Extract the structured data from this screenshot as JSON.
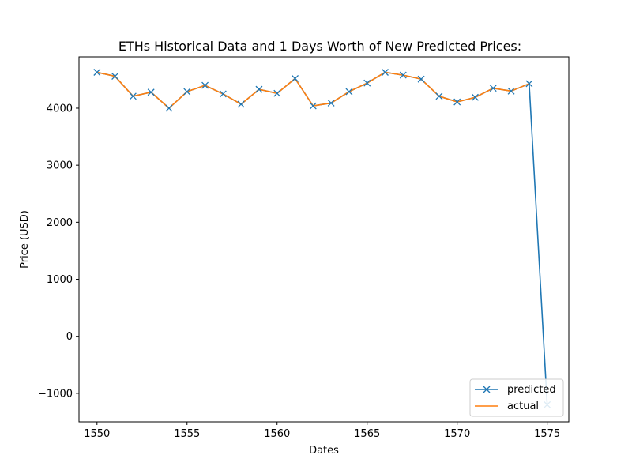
{
  "chart_data": {
    "type": "line",
    "title": "ETHs Historical Data and 1 Days Worth of New Predicted Prices:",
    "xlabel": "Dates",
    "ylabel": "Price (USD)",
    "xlim": [
      1549,
      1576.2
    ],
    "ylim": [
      -1500,
      4900
    ],
    "xticks": [
      "1550",
      "1555",
      "1560",
      "1565",
      "1570",
      "1575"
    ],
    "yticks": [
      "−1000",
      "0",
      "1000",
      "2000",
      "3000",
      "4000"
    ],
    "grid": false,
    "legend_position": "lower-right",
    "series": [
      {
        "name": "predicted",
        "color": "#1f77b4",
        "marker": "x",
        "x": [
          1550,
          1551,
          1552,
          1553,
          1554,
          1555,
          1556,
          1557,
          1558,
          1559,
          1560,
          1561,
          1562,
          1563,
          1564,
          1565,
          1566,
          1567,
          1568,
          1569,
          1570,
          1571,
          1572,
          1573,
          1574,
          1575
        ],
        "y": [
          4630,
          4560,
          4210,
          4280,
          4000,
          4290,
          4400,
          4250,
          4070,
          4330,
          4260,
          4520,
          4040,
          4090,
          4290,
          4440,
          4630,
          4580,
          4510,
          4210,
          4110,
          4190,
          4350,
          4300,
          4430,
          -1200
        ]
      },
      {
        "name": "actual",
        "color": "#ff7f0e",
        "marker": "none",
        "x": [
          1550,
          1551,
          1552,
          1553,
          1554,
          1555,
          1556,
          1557,
          1558,
          1559,
          1560,
          1561,
          1562,
          1563,
          1564,
          1565,
          1566,
          1567,
          1568,
          1569,
          1570,
          1571,
          1572,
          1573,
          1574
        ],
        "y": [
          4630,
          4560,
          4210,
          4280,
          4000,
          4290,
          4400,
          4250,
          4070,
          4330,
          4260,
          4520,
          4040,
          4090,
          4290,
          4440,
          4630,
          4580,
          4510,
          4210,
          4110,
          4190,
          4350,
          4300,
          4430
        ]
      }
    ]
  }
}
